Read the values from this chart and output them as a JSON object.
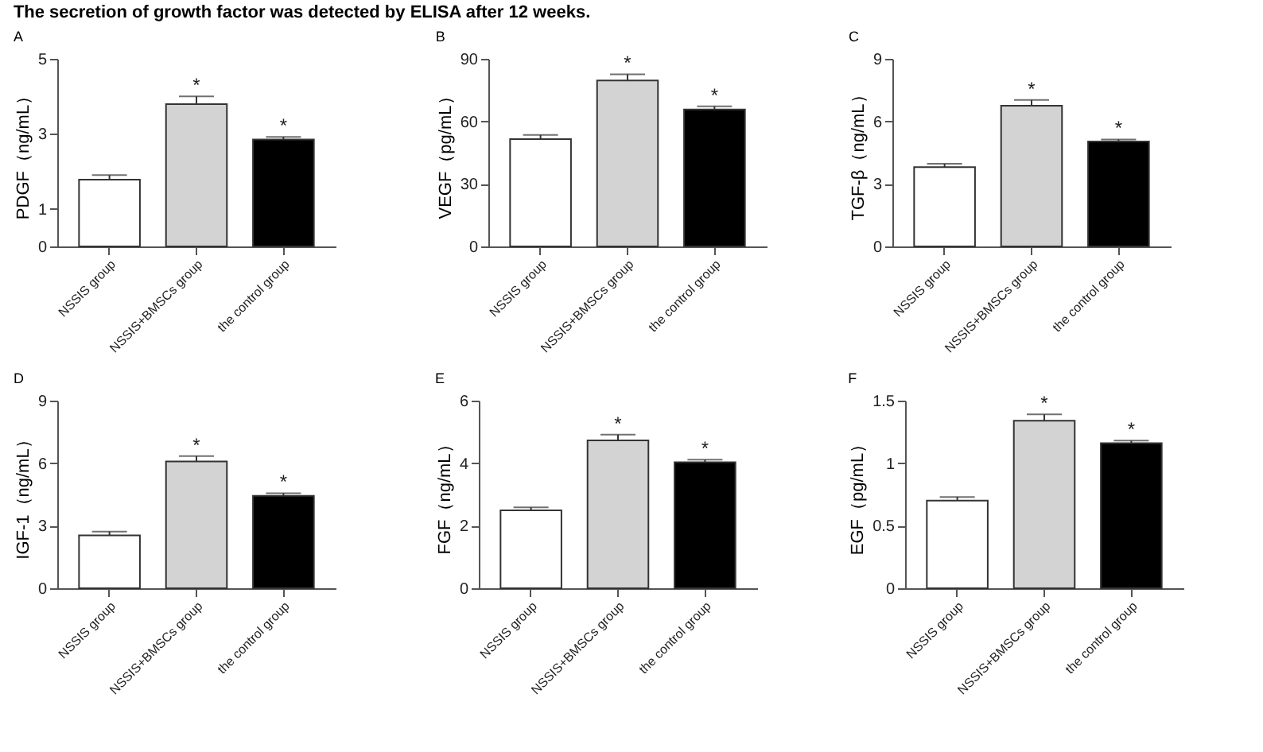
{
  "chart_data": [
    {
      "type": "bar",
      "title": "The secretion of growth factor was detected by ELISA after 12 weeks.",
      "subtitle": "A",
      "ylabel": "PDGF（ng/mL）",
      "categories": [
        "NSSIS group",
        "NSSIS+BMSCs group",
        "the control group"
      ],
      "values": [
        1.78,
        3.79,
        2.85
      ],
      "colors": [
        "#ffffff",
        "#d3d3d3",
        "#000000"
      ],
      "errors": [
        [
          1.78,
          1.9
        ],
        [
          3.79,
          4.0
        ],
        [
          2.85,
          2.92
        ]
      ],
      "ylim": [
        0,
        5
      ],
      "yticks": [
        0,
        1,
        3,
        5
      ],
      "annotations": [
        {
          "text": "*",
          "x": "NSSIS+BMSCs group",
          "y": 4.0
        },
        {
          "text": "*",
          "x": "the control group",
          "y": 2.92
        }
      ]
    },
    {
      "type": "bar",
      "subtitle": "B",
      "ylabel": "VEGF（pg/mL）",
      "categories": [
        "NSSIS group",
        "NSSIS+BMSCs group",
        "the control group"
      ],
      "values": [
        51.5,
        79.6,
        65.7
      ],
      "colors": [
        "#ffffff",
        "#d3d3d3",
        "#000000"
      ],
      "errors": [
        [
          51.5,
          53.5
        ],
        [
          79.6,
          82.6
        ],
        [
          65.7,
          67.2
        ]
      ],
      "ylim": [
        0,
        90
      ],
      "yticks": [
        0,
        30,
        60,
        90
      ],
      "annotations": [
        {
          "text": "*",
          "x": "NSSIS+BMSCs group",
          "y": 82.6
        },
        {
          "text": "*",
          "x": "the control group",
          "y": 67.2
        }
      ]
    },
    {
      "type": "bar",
      "subtitle": "C",
      "ylabel": "TGF-β（ng/mL）",
      "categories": [
        "NSSIS group",
        "NSSIS+BMSCs group",
        "the control group"
      ],
      "values": [
        3.8,
        6.75,
        5.03
      ],
      "colors": [
        "#ffffff",
        "#d3d3d3",
        "#000000"
      ],
      "errors": [
        [
          3.8,
          3.97
        ],
        [
          6.75,
          7.03
        ],
        [
          5.03,
          5.13
        ]
      ],
      "ylim": [
        0,
        9
      ],
      "yticks": [
        0,
        3,
        6,
        9
      ],
      "annotations": [
        {
          "text": "*",
          "x": "NSSIS+BMSCs group",
          "y": 7.03
        },
        {
          "text": "*",
          "x": "the control group",
          "y": 5.13
        }
      ]
    },
    {
      "type": "bar",
      "subtitle": "D",
      "ylabel": "IGF-1（ng/mL）",
      "categories": [
        "NSSIS group",
        "NSSIS+BMSCs group",
        "the control group"
      ],
      "values": [
        2.54,
        6.08,
        4.43
      ],
      "colors": [
        "#ffffff",
        "#d3d3d3",
        "#000000"
      ],
      "errors": [
        [
          2.54,
          2.72
        ],
        [
          6.08,
          6.34
        ],
        [
          4.43,
          4.56
        ]
      ],
      "ylim": [
        0,
        9
      ],
      "yticks": [
        0,
        3,
        6,
        9
      ],
      "annotations": [
        {
          "text": "*",
          "x": "NSSIS+BMSCs group",
          "y": 6.34
        },
        {
          "text": "*",
          "x": "the control group",
          "y": 4.56
        }
      ]
    },
    {
      "type": "bar",
      "subtitle": "E",
      "ylabel": "FGF（ng/mL）",
      "categories": [
        "NSSIS group",
        "NSSIS+BMSCs group",
        "the control group"
      ],
      "values": [
        2.49,
        4.73,
        4.03
      ],
      "colors": [
        "#ffffff",
        "#d3d3d3",
        "#000000"
      ],
      "errors": [
        [
          2.49,
          2.59
        ],
        [
          4.73,
          4.91
        ],
        [
          4.03,
          4.11
        ]
      ],
      "ylim": [
        0,
        6
      ],
      "yticks": [
        0,
        2,
        4,
        6
      ],
      "annotations": [
        {
          "text": "*",
          "x": "NSSIS+BMSCs group",
          "y": 4.91
        },
        {
          "text": "*",
          "x": "the control group",
          "y": 4.11
        }
      ]
    },
    {
      "type": "bar",
      "subtitle": "F",
      "ylabel": "EGF（pg/mL）",
      "categories": [
        "NSSIS group",
        "NSSIS+BMSCs group",
        "the control group"
      ],
      "values": [
        0.7,
        1.34,
        1.16
      ],
      "colors": [
        "#ffffff",
        "#d3d3d3",
        "#000000"
      ],
      "errors": [
        [
          0.7,
          0.73
        ],
        [
          1.34,
          1.39
        ],
        [
          1.16,
          1.18
        ]
      ],
      "ylim": [
        0,
        1.5
      ],
      "yticks": [
        0,
        0.5,
        1.0,
        1.5
      ],
      "annotations": [
        {
          "text": "*",
          "x": "NSSIS+BMSCs group",
          "y": 1.39
        },
        {
          "text": "*",
          "x": "the control group",
          "y": 1.18
        }
      ]
    }
  ]
}
